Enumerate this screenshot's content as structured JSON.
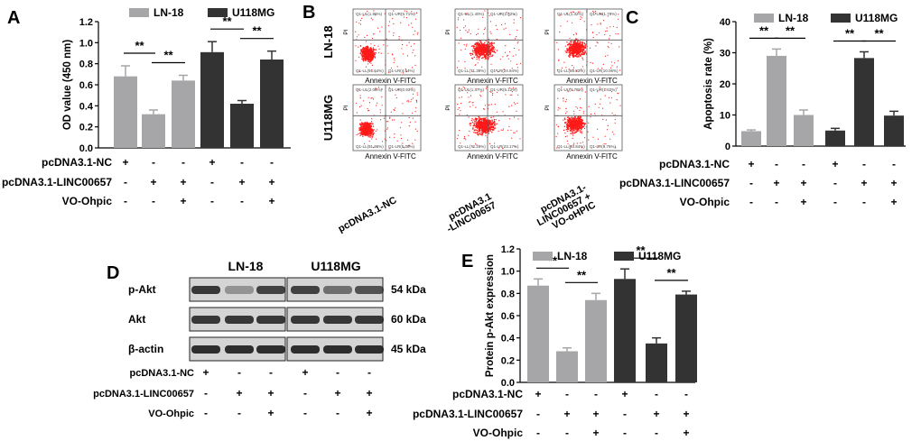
{
  "figure": {
    "panels": {
      "A": {
        "letter": "A"
      },
      "B": {
        "letter": "B"
      },
      "C": {
        "letter": "C"
      },
      "D": {
        "letter": "D"
      },
      "E": {
        "letter": "E"
      }
    },
    "legend": {
      "ln18": "LN-18",
      "u118mg": "U118MG"
    },
    "colors": {
      "ln18": "#a6a6a8",
      "u118mg": "#333333",
      "flow_dot": "#ff1a1a",
      "blot": "#1b1b1b"
    },
    "significance": "**",
    "conditions": {
      "row_labels": [
        "pcDNA3.1-NC",
        "pcDNA3.1-LINC00657",
        "VO-Ohpic"
      ],
      "signs": [
        [
          "+",
          "-",
          "-",
          "+",
          "-",
          "-"
        ],
        [
          "-",
          "+",
          "+",
          "-",
          "+",
          "+"
        ],
        [
          "-",
          "-",
          "+",
          "-",
          "-",
          "+"
        ]
      ]
    },
    "flow": {
      "row_labels": [
        "LN-18",
        "U118MG"
      ],
      "x_label": "Annexin V-FITC",
      "y_label": "PI",
      "col_labels": [
        "pcDNA3.1-NC",
        "pcDNA3.1\n-LINC00657",
        "pcDNA3.1-\nLINC00657 +\nVO-oHPIC"
      ],
      "quadrants": [
        [
          [
            "Q1-UL(1.96%)",
            "Q1-UR(5.71%)",
            "Q1-LL(91.64%)",
            "Q1-LR(4.64%)"
          ],
          [
            "Q1-UL(1.40%)",
            "Q1-UR(2.62%)",
            "Q1-LL(71.39%)",
            "Q1-LR(24.94%)"
          ],
          [
            "Q1-UL(1.32%)",
            "Q1-UR(1.79%)",
            "Q1-LL(86.83%)",
            "Q1-LR(10.06%)"
          ]
        ],
        [
          [
            "Q1-UL(2.06%)",
            "Q1-UR(0.93%)",
            "Q1-LL(91.96%)",
            "Q1-LR(5.06%)"
          ],
          [
            "Q1-UL(1.47%)",
            "Q1-UR(5.12%)",
            "Q1-LL(72.29%)",
            "Q1-LR(23.17%)"
          ],
          [
            "Q1-UL(4.78%)",
            "Q1-UR(1.62%)",
            "Q1-LL(83.84%)",
            "Q1-LR(9.76%)"
          ]
        ]
      ]
    },
    "blot": {
      "cell_lines": [
        "LN-18",
        "U118MG"
      ],
      "proteins": [
        "p-Akt",
        "Akt",
        "β-actin"
      ],
      "sizes": [
        "54 kDa",
        "60 kDa",
        "45 kDa"
      ],
      "intensity": [
        [
          0.85,
          0.35,
          0.8,
          0.8,
          0.55,
          0.7
        ],
        [
          0.85,
          0.85,
          0.85,
          0.85,
          0.85,
          0.85
        ],
        [
          0.9,
          0.9,
          0.9,
          0.9,
          0.9,
          0.9
        ]
      ]
    }
  },
  "chart_data": [
    {
      "panel": "A",
      "type": "bar",
      "title": "",
      "xlabel": "",
      "ylabel": "OD value (450 nm)",
      "ylim": [
        0.0,
        1.2
      ],
      "yticks": [
        "0.0",
        "0.2",
        "0.4",
        "0.6",
        "0.8",
        "1.0",
        "1.2"
      ],
      "series": [
        {
          "name": "LN-18",
          "values": [
            0.68,
            0.32,
            0.64
          ],
          "errors": [
            0.1,
            0.04,
            0.05
          ]
        },
        {
          "name": "U118MG",
          "values": [
            0.91,
            0.42,
            0.84
          ],
          "errors": [
            0.1,
            0.03,
            0.08
          ]
        }
      ],
      "significance": [
        [
          0,
          1
        ],
        [
          1,
          2
        ],
        [
          3,
          4
        ],
        [
          4,
          5
        ]
      ]
    },
    {
      "panel": "C",
      "type": "bar",
      "title": "",
      "xlabel": "",
      "ylabel": "Apoptosis rate (%)",
      "ylim": [
        0,
        40
      ],
      "yticks": [
        "0",
        "10",
        "20",
        "30",
        "40"
      ],
      "series": [
        {
          "name": "LN-18",
          "values": [
            4.8,
            29.0,
            10.0
          ],
          "errors": [
            0.4,
            2.2,
            1.6
          ]
        },
        {
          "name": "U118MG",
          "values": [
            5.0,
            28.3,
            9.8
          ],
          "errors": [
            0.7,
            2.0,
            1.4
          ]
        }
      ],
      "significance": [
        [
          0,
          1
        ],
        [
          1,
          2
        ],
        [
          3,
          4
        ],
        [
          4,
          5
        ]
      ]
    },
    {
      "panel": "E",
      "type": "bar",
      "title": "",
      "xlabel": "",
      "ylabel": "Protein p-Akt expression",
      "ylim": [
        0.0,
        1.2
      ],
      "yticks": [
        "0.0",
        "0.2",
        "0.4",
        "0.6",
        "0.8",
        "1.0",
        "1.2"
      ],
      "series": [
        {
          "name": "LN-18",
          "values": [
            0.87,
            0.28,
            0.74
          ],
          "errors": [
            0.06,
            0.03,
            0.06
          ]
        },
        {
          "name": "U118MG",
          "values": [
            0.93,
            0.35,
            0.79
          ],
          "errors": [
            0.09,
            0.05,
            0.03
          ]
        }
      ],
      "significance": [
        [
          0,
          1
        ],
        [
          1,
          2
        ],
        [
          3,
          4
        ],
        [
          4,
          5
        ]
      ]
    }
  ]
}
